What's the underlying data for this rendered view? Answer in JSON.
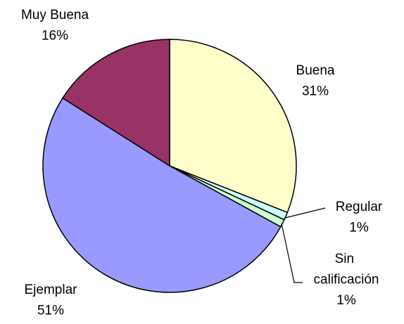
{
  "chart_data": {
    "type": "pie",
    "categories": [
      "Buena",
      "Regular",
      "Sin calificación",
      "Ejemplar",
      "Muy Buena"
    ],
    "values": [
      31,
      1,
      1,
      51,
      16
    ],
    "value_labels": [
      "31%",
      "1%",
      "1%",
      "51%",
      "16%"
    ],
    "colors": [
      "#ffffcc",
      "#ccffff",
      "#ccffcc",
      "#9999ff",
      "#993366"
    ]
  }
}
